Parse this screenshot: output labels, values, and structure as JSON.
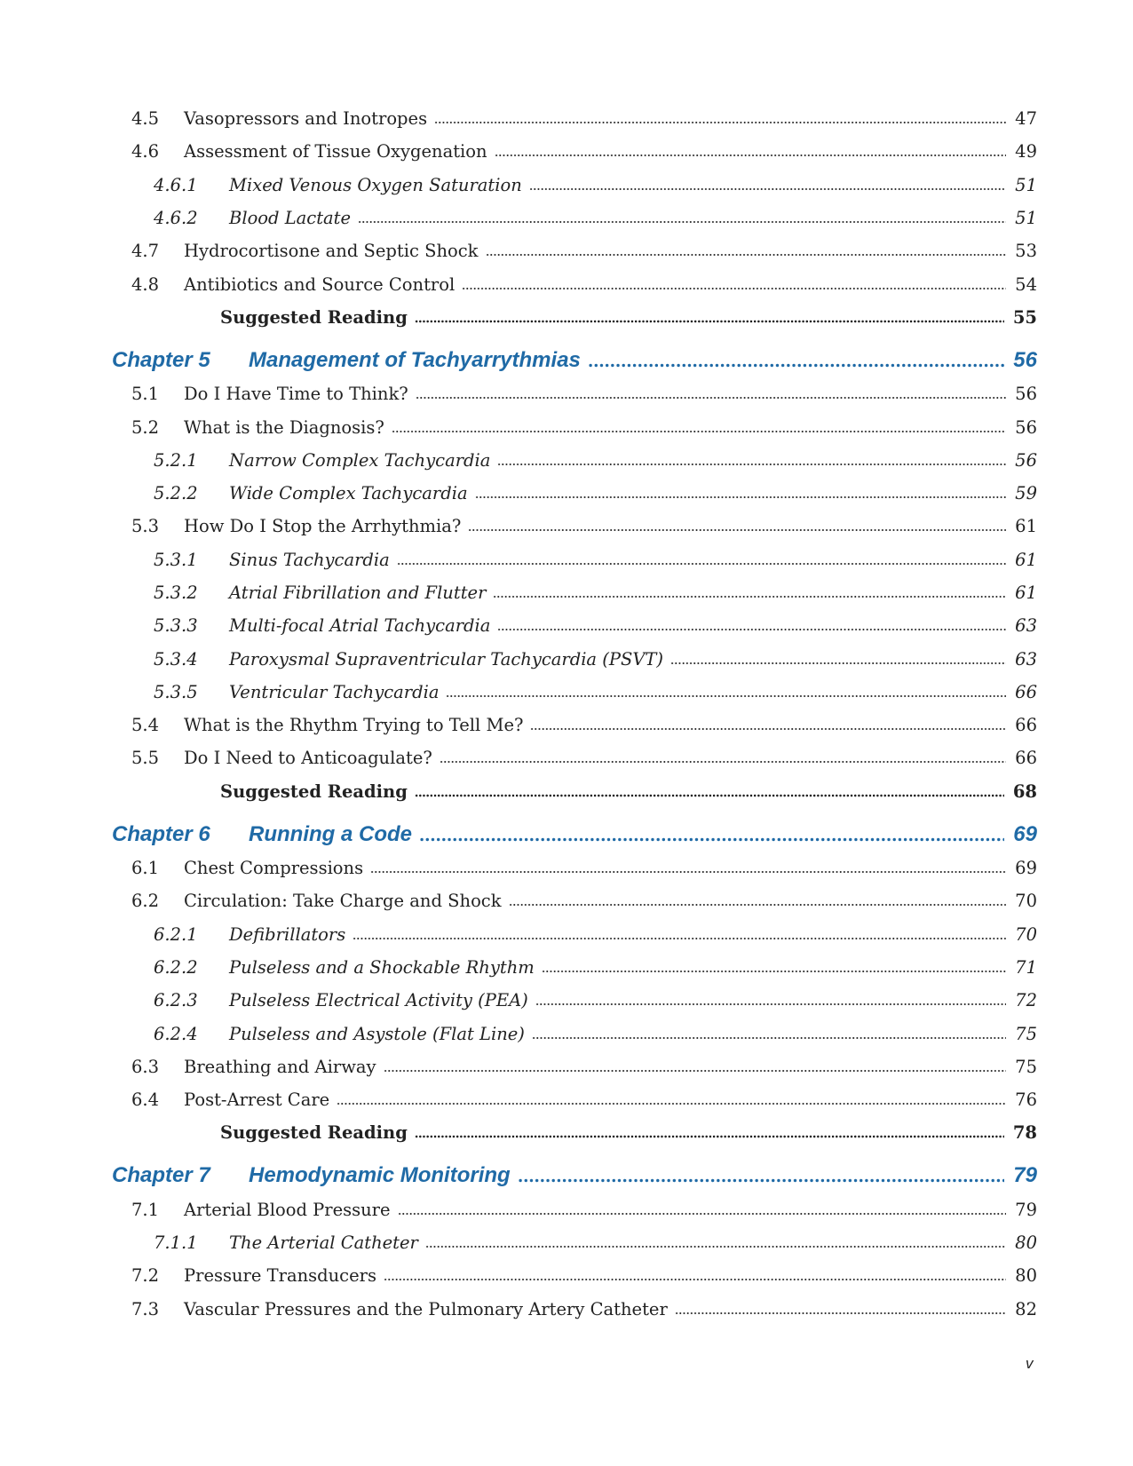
{
  "entries": [
    {
      "type": "sec",
      "num": "4.5",
      "title": "Vasopressors and Inotropes",
      "page": "47"
    },
    {
      "type": "sec",
      "num": "4.6",
      "title": "Assessment of Tissue Oxygenation",
      "page": "49"
    },
    {
      "type": "sub",
      "num": "4.6.1",
      "title": "Mixed Venous Oxygen Saturation",
      "page": "51"
    },
    {
      "type": "sub",
      "num": "4.6.2",
      "title": "Blood Lactate",
      "page": "51"
    },
    {
      "type": "sec",
      "num": "4.7",
      "title": "Hydrocortisone and Septic Shock",
      "page": "53"
    },
    {
      "type": "sec",
      "num": "4.8",
      "title": "Antibiotics and Source Control",
      "page": "54"
    },
    {
      "type": "read",
      "num": "",
      "title": "Suggested Reading",
      "page": "55"
    },
    {
      "type": "chapter",
      "num": "Chapter 5",
      "title": "Management of Tachyarrythmias",
      "page": "56"
    },
    {
      "type": "sec",
      "num": "5.1",
      "title": "Do I Have Time to Think?",
      "page": "56"
    },
    {
      "type": "sec",
      "num": "5.2",
      "title": "What is the Diagnosis?",
      "page": "56"
    },
    {
      "type": "sub",
      "num": "5.2.1",
      "title": "Narrow Complex Tachycardia",
      "page": "56"
    },
    {
      "type": "sub",
      "num": "5.2.2",
      "title": "Wide Complex Tachycardia",
      "page": "59"
    },
    {
      "type": "sec",
      "num": "5.3",
      "title": "How Do I Stop the Arrhythmia?",
      "page": "61"
    },
    {
      "type": "sub",
      "num": "5.3.1",
      "title": "Sinus Tachycardia",
      "page": "61"
    },
    {
      "type": "sub",
      "num": "5.3.2",
      "title": "Atrial Fibrillation and Flutter",
      "page": "61"
    },
    {
      "type": "sub",
      "num": "5.3.3",
      "title": "Multi-focal Atrial Tachycardia",
      "page": "63"
    },
    {
      "type": "sub",
      "num": "5.3.4",
      "title": "Paroxysmal Supraventricular Tachycardia (PSVT)",
      "page": "63"
    },
    {
      "type": "sub",
      "num": "5.3.5",
      "title": "Ventricular Tachycardia",
      "page": "66"
    },
    {
      "type": "sec",
      "num": "5.4",
      "title": "What is the Rhythm Trying to Tell Me?",
      "page": "66"
    },
    {
      "type": "sec",
      "num": "5.5",
      "title": "Do I Need to Anticoagulate?",
      "page": "66"
    },
    {
      "type": "read",
      "num": "",
      "title": "Suggested Reading",
      "page": "68"
    },
    {
      "type": "chapter",
      "num": "Chapter 6",
      "title": "Running a Code",
      "page": "69"
    },
    {
      "type": "sec",
      "num": "6.1",
      "title": "Chest Compressions",
      "page": "69"
    },
    {
      "type": "sec",
      "num": "6.2",
      "title": "Circulation: Take Charge and Shock",
      "page": "70"
    },
    {
      "type": "sub",
      "num": "6.2.1",
      "title": "Defibrillators",
      "page": "70"
    },
    {
      "type": "sub",
      "num": "6.2.2",
      "title": "Pulseless and a Shockable Rhythm",
      "page": "71"
    },
    {
      "type": "sub",
      "num": "6.2.3",
      "title": "Pulseless Electrical Activity (PEA)",
      "page": "72"
    },
    {
      "type": "sub",
      "num": "6.2.4",
      "title": "Pulseless and Asystole (Flat Line)",
      "page": "75"
    },
    {
      "type": "sec",
      "num": "6.3",
      "title": "Breathing and Airway",
      "page": "75"
    },
    {
      "type": "sec",
      "num": "6.4",
      "title": "Post-Arrest Care",
      "page": "76"
    },
    {
      "type": "read",
      "num": "",
      "title": "Suggested Reading",
      "page": "78"
    },
    {
      "type": "chapter",
      "num": "Chapter 7",
      "title": "Hemodynamic Monitoring",
      "page": "79"
    },
    {
      "type": "sec",
      "num": "7.1",
      "title": "Arterial Blood Pressure",
      "page": "79"
    },
    {
      "type": "sub",
      "num": "7.1.1",
      "title": "The Arterial Catheter",
      "page": "80"
    },
    {
      "type": "sec",
      "num": "7.2",
      "title": "Pressure Transducers",
      "page": "80"
    },
    {
      "type": "sec",
      "num": "7.3",
      "title": "Vascular Pressures and the Pulmonary Artery Catheter",
      "page": "82"
    }
  ],
  "folio": "v",
  "colors": {
    "chapter": "#1f6aa6",
    "text": "#222222"
  }
}
